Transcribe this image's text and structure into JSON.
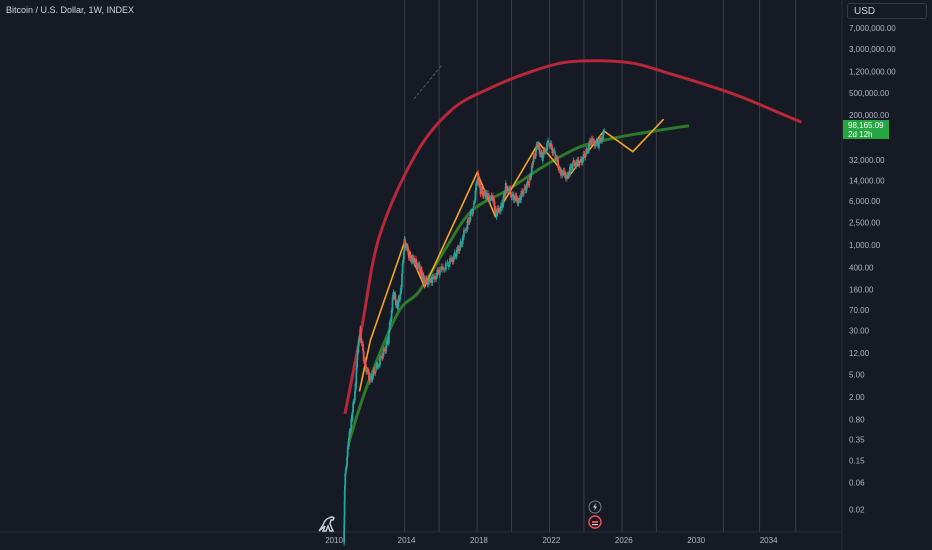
{
  "header": {
    "symbol_title": "Bitcoin / U.S. Dollar, 1W, INDEX"
  },
  "toolbar": {
    "currency": "USD"
  },
  "price_badge": {
    "price": "98,165.09",
    "countdown": "2d 12h",
    "color": "#26a642"
  },
  "icons": {
    "logo": "dinosaur-logo-icon",
    "flash": "lightning-icon",
    "event": "halving-event-icon"
  },
  "colors": {
    "background": "#161a25",
    "upper_curve": "#b8273a",
    "lower_curve": "#2d7a2a",
    "projection": "#f5a623",
    "candle_up": "#26a69a",
    "candle_down": "#ef5350"
  },
  "chart_data": {
    "type": "line",
    "title": "Bitcoin / U.S. Dollar, 1W, INDEX",
    "xlabel": "",
    "ylabel": "",
    "y_scale": "log",
    "xlim": [
      2009.0,
      2037.5
    ],
    "ylim": [
      0.008,
      12000000
    ],
    "grid": false,
    "x_ticks": [
      2010,
      2014,
      2018,
      2022,
      2026,
      2030,
      2034
    ],
    "x_tick_labels": [
      "2010",
      "2014",
      "2018",
      "2022",
      "2026",
      "2030",
      "2034"
    ],
    "y_ticks": [
      7000000,
      3000000,
      1200000,
      500000,
      200000,
      32000,
      14000,
      6000,
      2500,
      1000,
      400,
      160,
      70,
      30,
      12,
      5,
      2,
      0.8,
      0.35,
      0.15,
      0.06,
      0.02
    ],
    "y_tick_labels": [
      "7,000,000.00",
      "3,000,000.00",
      "1,200,000.00",
      "500,000.00",
      "200,000.00",
      "32,000.00",
      "14,000.00",
      "6,000.00",
      "2,500.00",
      "1,000.00",
      "400.00",
      "160.00",
      "70.00",
      "30.00",
      "12.00",
      "5.00",
      "2.00",
      "0.80",
      "0.35",
      "0.15",
      "0.06",
      "0.02"
    ],
    "last_price": 98165.09,
    "vertical_lines": [
      2013.9,
      2015.8,
      2017.9,
      2019.8,
      2021.9,
      2023.8,
      2025.9,
      2027.8,
      2031.5,
      2033.5,
      2035.5
    ],
    "series": [
      {
        "values": [
          [
            2010.6,
            1.0
          ],
          [
            2011.5,
            30
          ],
          [
            2012.5,
            1400
          ],
          [
            2014.5,
            40000
          ],
          [
            2016.5,
            250000
          ],
          [
            2018.6,
            600000
          ],
          [
            2020.6,
            1100000
          ],
          [
            2022.6,
            1700000
          ],
          [
            2024.6,
            1850000
          ],
          [
            2026.6,
            1650000
          ],
          [
            2028.5,
            1100000
          ],
          [
            2030.5,
            700000
          ],
          [
            2032.5,
            420000
          ],
          [
            2035.8,
            150000
          ]
        ]
      },
      {
        "values": [
          [
            2010.8,
            0.3
          ],
          [
            2011.8,
            3
          ],
          [
            2013.5,
            60
          ],
          [
            2014.7,
            150
          ],
          [
            2016.2,
            900
          ],
          [
            2017.6,
            4000
          ],
          [
            2019.6,
            9500
          ],
          [
            2021.6,
            25000
          ],
          [
            2023.6,
            55000
          ],
          [
            2025.6,
            80000
          ],
          [
            2027.7,
            105000
          ],
          [
            2029.6,
            130000
          ]
        ]
      },
      {
        "values": [
          [
            2011.4,
            2.5
          ],
          [
            2012.0,
            20
          ],
          [
            2013.9,
            1150
          ],
          [
            2015.0,
            180
          ],
          [
            2017.9,
            19000
          ],
          [
            2018.9,
            3200
          ],
          [
            2021.3,
            65000
          ],
          [
            2022.9,
            15500
          ],
          [
            2024.9,
            105000
          ],
          [
            2026.5,
            45000
          ],
          [
            2028.2,
            170000
          ]
        ]
      },
      {
        "values": [
          [
            2010.55,
            0.005
          ],
          [
            2010.6,
            0.06
          ],
          [
            2010.8,
            0.3
          ],
          [
            2011.0,
            0.9
          ],
          [
            2011.2,
            3
          ],
          [
            2011.3,
            12
          ],
          [
            2011.45,
            30
          ],
          [
            2011.7,
            8
          ],
          [
            2012.0,
            4
          ],
          [
            2012.3,
            6
          ],
          [
            2012.7,
            11
          ],
          [
            2013.0,
            20
          ],
          [
            2013.3,
            140
          ],
          [
            2013.5,
            80
          ],
          [
            2013.7,
            150
          ],
          [
            2013.9,
            1150
          ],
          [
            2014.2,
            600
          ],
          [
            2014.5,
            500
          ],
          [
            2014.8,
            350
          ],
          [
            2015.0,
            220
          ],
          [
            2015.4,
            230
          ],
          [
            2015.8,
            330
          ],
          [
            2016.3,
            450
          ],
          [
            2016.7,
            650
          ],
          [
            2017.0,
            1000
          ],
          [
            2017.4,
            2500
          ],
          [
            2017.7,
            4500
          ],
          [
            2017.95,
            17000
          ],
          [
            2018.1,
            9000
          ],
          [
            2018.4,
            7500
          ],
          [
            2018.8,
            6400
          ],
          [
            2018.95,
            3500
          ],
          [
            2019.3,
            5000
          ],
          [
            2019.5,
            11000
          ],
          [
            2019.9,
            7200
          ],
          [
            2020.2,
            6000
          ],
          [
            2020.5,
            9500
          ],
          [
            2020.8,
            13000
          ],
          [
            2021.0,
            30000
          ],
          [
            2021.25,
            60000
          ],
          [
            2021.5,
            35000
          ],
          [
            2021.85,
            65000
          ],
          [
            2022.2,
            42000
          ],
          [
            2022.5,
            20000
          ],
          [
            2022.9,
            16500
          ],
          [
            2023.2,
            28000
          ],
          [
            2023.6,
            29000
          ],
          [
            2023.9,
            40000
          ],
          [
            2024.2,
            70000
          ],
          [
            2024.6,
            60000
          ],
          [
            2024.95,
            98165.09
          ]
        ]
      }
    ]
  }
}
